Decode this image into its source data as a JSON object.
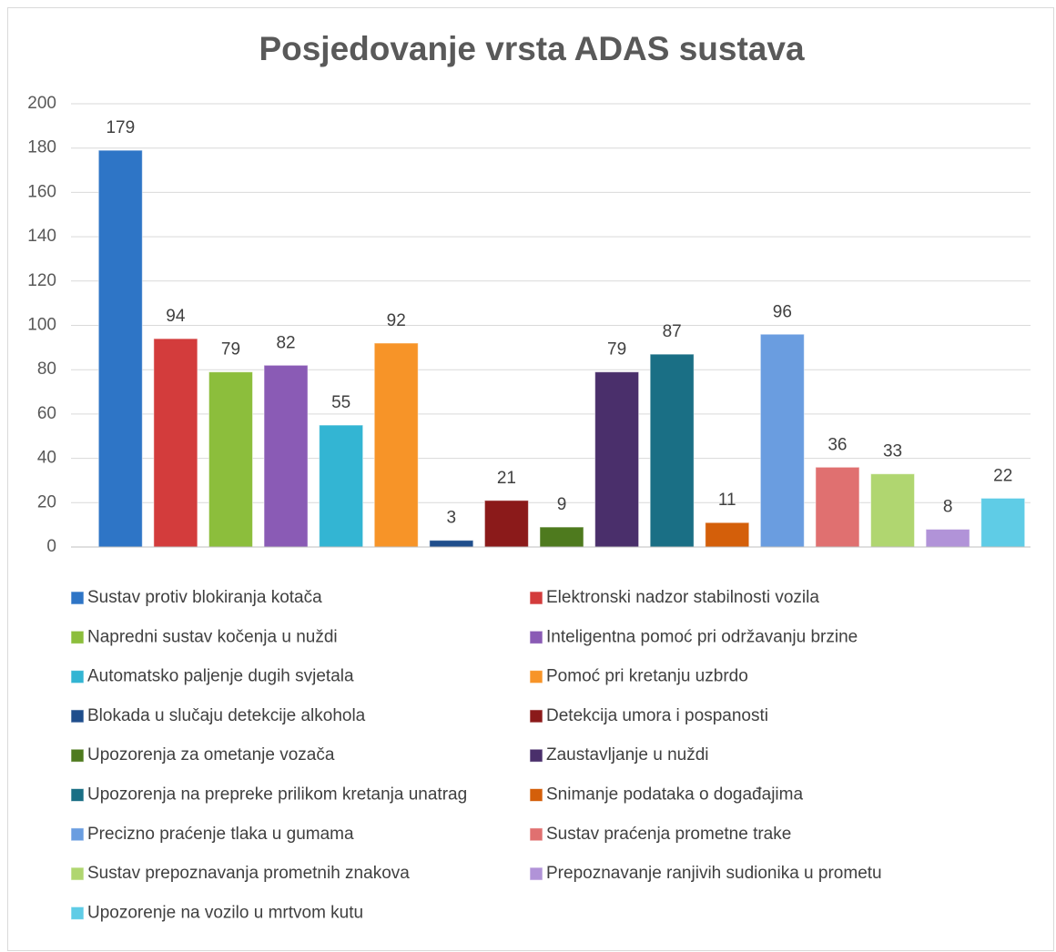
{
  "chart_data": {
    "type": "bar",
    "title": "Posjedovanje vrsta ADAS sustava",
    "ylim": [
      0,
      200
    ],
    "yticks": [
      0,
      20,
      40,
      60,
      80,
      100,
      120,
      140,
      160,
      180,
      200
    ],
    "grid": true,
    "legend": "bottom",
    "series": [
      {
        "name": "Sustav protiv blokiranja kotača",
        "color": "#2e75c6",
        "values": [
          179
        ]
      },
      {
        "name": "Elektronski nadzor stabilnosti vozila",
        "color": "#d33c3c",
        "values": [
          94
        ]
      },
      {
        "name": "Napredni sustav kočenja u nuždi",
        "color": "#8cbe3c",
        "values": [
          79
        ]
      },
      {
        "name": "Inteligentna pomoć pri održavanju brzine",
        "color": "#8a5bb5",
        "values": [
          82
        ]
      },
      {
        "name": "Automatsko paljenje dugih svjetala",
        "color": "#33b5d3",
        "values": [
          55
        ]
      },
      {
        "name": "Pomoć pri kretanju uzbrdo",
        "color": "#f79428",
        "values": [
          92
        ]
      },
      {
        "name": "Blokada u slučaju detekcije alkohola",
        "color": "#1f4e8c",
        "values": [
          3
        ]
      },
      {
        "name": "Detekcija umora i pospanosti",
        "color": "#8b1a1a",
        "values": [
          21
        ]
      },
      {
        "name": "Upozorenja za ometanje vozača",
        "color": "#4e7a1e",
        "values": [
          9
        ]
      },
      {
        "name": "Zaustavljanje u nuždi",
        "color": "#4a2f6b",
        "values": [
          79
        ]
      },
      {
        "name": "Upozorenja na prepreke prilikom kretanja unatrag",
        "color": "#1a6f85",
        "values": [
          87
        ]
      },
      {
        "name": "Snimanje podataka o događajima",
        "color": "#d45f0a",
        "values": [
          11
        ]
      },
      {
        "name": "Precizno praćenje tlaka u gumama",
        "color": "#6a9de0",
        "values": [
          96
        ]
      },
      {
        "name": "Sustav praćenja prometne trake",
        "color": "#e07070",
        "values": [
          36
        ]
      },
      {
        "name": "Sustav prepoznavanja prometnih znakova",
        "color": "#b0d670",
        "values": [
          33
        ]
      },
      {
        "name": "Prepoznavanje ranjivih sudionika u prometu",
        "color": "#b193d8",
        "values": [
          8
        ]
      },
      {
        "name": "Upozorenje na vozilo u mrtvom kutu",
        "color": "#5fcce6",
        "values": [
          22
        ]
      }
    ]
  }
}
